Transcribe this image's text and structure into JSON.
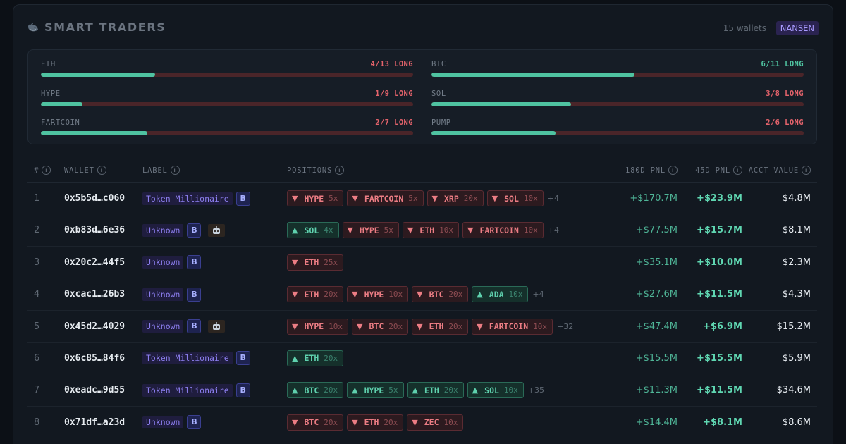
{
  "header": {
    "title": "SMART TRADERS",
    "wallet_count": "15 wallets",
    "badge": "NANSEN"
  },
  "colors": {
    "long": "#4fc3a1",
    "short": "#e4636b",
    "badge": "#a99bff"
  },
  "summary": [
    {
      "name": "ETH",
      "value": "4/13 LONG",
      "ratio": 0.3077,
      "tone": "red"
    },
    {
      "name": "BTC",
      "value": "6/11 LONG",
      "ratio": 0.5455,
      "tone": "green"
    },
    {
      "name": "HYPE",
      "value": "1/9 LONG",
      "ratio": 0.1111,
      "tone": "red"
    },
    {
      "name": "SOL",
      "value": "3/8 LONG",
      "ratio": 0.375,
      "tone": "red"
    },
    {
      "name": "FARTCOIN",
      "value": "2/7 LONG",
      "ratio": 0.2857,
      "tone": "red"
    },
    {
      "name": "PUMP",
      "value": "2/6 LONG",
      "ratio": 0.3333,
      "tone": "red"
    }
  ],
  "columns": {
    "idx": "#",
    "wallet": "WALLET",
    "label": "LABEL",
    "positions": "POSITIONS",
    "pnl180": "180D PNL",
    "pnl45": "45D PNL",
    "acct": "ACCT VALUE",
    "info": "i"
  },
  "rows": [
    {
      "idx": "1",
      "wallet": "0x5b5d…c060",
      "label": "Token Millionaire",
      "badge": "B",
      "bot": false,
      "positions": [
        {
          "side": "short",
          "coin": "HYPE",
          "lev": "5x"
        },
        {
          "side": "short",
          "coin": "FARTCOIN",
          "lev": "5x"
        },
        {
          "side": "short",
          "coin": "XRP",
          "lev": "20x"
        },
        {
          "side": "short",
          "coin": "SOL",
          "lev": "10x"
        }
      ],
      "more": "+4",
      "pnl180": "+$170.7M",
      "pnl45": "+$23.9M",
      "acct": "$4.8M"
    },
    {
      "idx": "2",
      "wallet": "0xb83d…6e36",
      "label": "Unknown",
      "badge": "B",
      "bot": true,
      "positions": [
        {
          "side": "long",
          "coin": "SOL",
          "lev": "4x"
        },
        {
          "side": "short",
          "coin": "HYPE",
          "lev": "5x"
        },
        {
          "side": "short",
          "coin": "ETH",
          "lev": "10x"
        },
        {
          "side": "short",
          "coin": "FARTCOIN",
          "lev": "10x"
        }
      ],
      "more": "+4",
      "pnl180": "+$77.5M",
      "pnl45": "+$15.7M",
      "acct": "$8.1M"
    },
    {
      "idx": "3",
      "wallet": "0x20c2…44f5",
      "label": "Unknown",
      "badge": "B",
      "bot": false,
      "positions": [
        {
          "side": "short",
          "coin": "ETH",
          "lev": "25x"
        }
      ],
      "more": "",
      "pnl180": "+$35.1M",
      "pnl45": "+$10.0M",
      "acct": "$2.3M"
    },
    {
      "idx": "4",
      "wallet": "0xcac1…26b3",
      "label": "Unknown",
      "badge": "B",
      "bot": false,
      "positions": [
        {
          "side": "short",
          "coin": "ETH",
          "lev": "20x"
        },
        {
          "side": "short",
          "coin": "HYPE",
          "lev": "10x"
        },
        {
          "side": "short",
          "coin": "BTC",
          "lev": "20x"
        },
        {
          "side": "long",
          "coin": "ADA",
          "lev": "10x"
        }
      ],
      "more": "+4",
      "pnl180": "+$27.6M",
      "pnl45": "+$11.5M",
      "acct": "$4.3M"
    },
    {
      "idx": "5",
      "wallet": "0x45d2…4029",
      "label": "Unknown",
      "badge": "B",
      "bot": true,
      "positions": [
        {
          "side": "short",
          "coin": "HYPE",
          "lev": "10x"
        },
        {
          "side": "short",
          "coin": "BTC",
          "lev": "20x"
        },
        {
          "side": "short",
          "coin": "ETH",
          "lev": "20x"
        },
        {
          "side": "short",
          "coin": "FARTCOIN",
          "lev": "10x"
        }
      ],
      "more": "+32",
      "pnl180": "+$47.4M",
      "pnl45": "+$6.9M",
      "acct": "$15.2M"
    },
    {
      "idx": "6",
      "wallet": "0x6c85…84f6",
      "label": "Token Millionaire",
      "badge": "B",
      "bot": false,
      "positions": [
        {
          "side": "long",
          "coin": "ETH",
          "lev": "20x"
        }
      ],
      "more": "",
      "pnl180": "+$15.5M",
      "pnl45": "+$15.5M",
      "acct": "$5.9M"
    },
    {
      "idx": "7",
      "wallet": "0xeadc…9d55",
      "label": "Token Millionaire",
      "badge": "B",
      "bot": false,
      "positions": [
        {
          "side": "long",
          "coin": "BTC",
          "lev": "20x"
        },
        {
          "side": "long",
          "coin": "HYPE",
          "lev": "5x"
        },
        {
          "side": "long",
          "coin": "ETH",
          "lev": "20x"
        },
        {
          "side": "long",
          "coin": "SOL",
          "lev": "10x"
        }
      ],
      "more": "+35",
      "pnl180": "+$11.3M",
      "pnl45": "+$11.5M",
      "acct": "$34.6M"
    },
    {
      "idx": "8",
      "wallet": "0x71df…a23d",
      "label": "Unknown",
      "badge": "B",
      "bot": false,
      "positions": [
        {
          "side": "short",
          "coin": "BTC",
          "lev": "20x"
        },
        {
          "side": "short",
          "coin": "ETH",
          "lev": "20x"
        },
        {
          "side": "short",
          "coin": "ZEC",
          "lev": "10x"
        }
      ],
      "more": "",
      "pnl180": "+$14.4M",
      "pnl45": "+$8.1M",
      "acct": "$8.6M"
    }
  ]
}
